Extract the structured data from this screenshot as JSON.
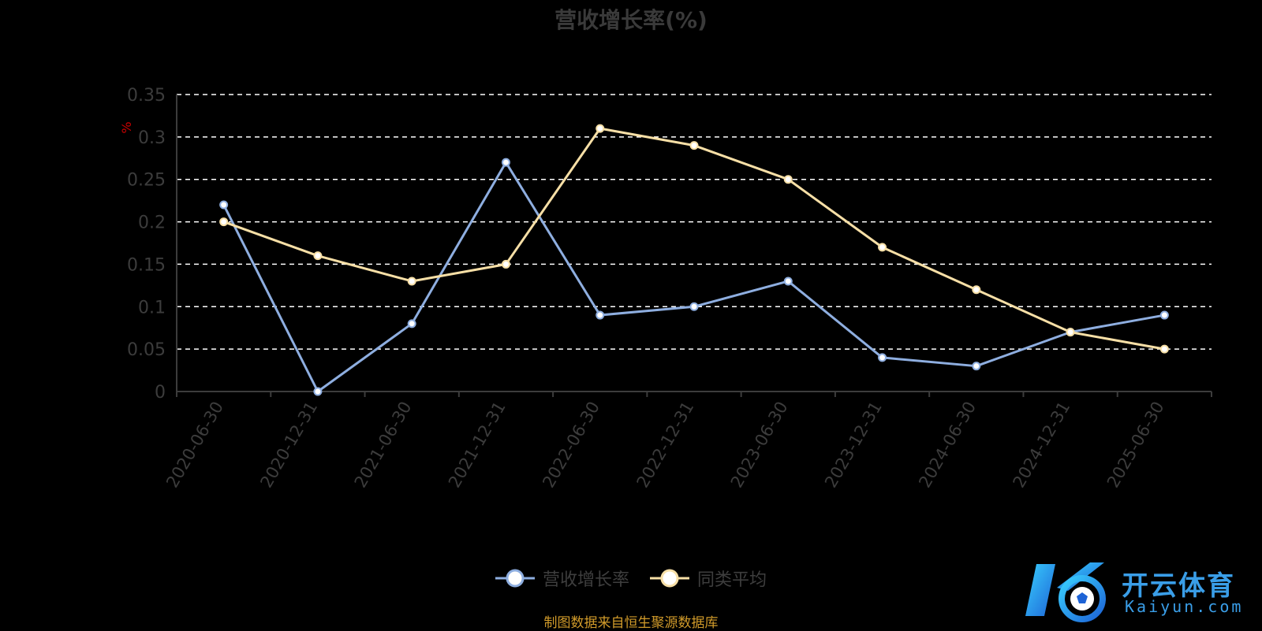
{
  "title": "营收增长率(%)",
  "source_note": "制图数据来自恒生聚源数据库",
  "watermark": {
    "brand": "开云体育",
    "domain": "Kaiyun.com"
  },
  "colors": {
    "background": "#000000",
    "series_1": "#8eaee0",
    "series_2": "#f7dfa6",
    "grid": "#ffffff",
    "axis_text": "#3c3c3c",
    "unit": "#cc0000",
    "source": "#d09a2a"
  },
  "chart_data": {
    "type": "line",
    "title": "营收增长率(%)",
    "ylabel": "%",
    "ylim": [
      0,
      0.35
    ],
    "yticks": [
      0,
      0.05,
      0.1,
      0.15,
      0.2,
      0.25,
      0.3,
      0.35
    ],
    "grid": true,
    "legend_position": "bottom",
    "categories": [
      "2020-06-30",
      "2020-12-31",
      "2021-06-30",
      "2021-12-31",
      "2022-06-30",
      "2022-12-31",
      "2023-06-30",
      "2023-12-31",
      "2024-06-30",
      "2024-12-31",
      "2025-06-30"
    ],
    "series": [
      {
        "name": "营收增长率",
        "color": "#8eaee0",
        "values": [
          0.22,
          0,
          0.08,
          0.27,
          0.09,
          0.1,
          0.13,
          0.04,
          0.03,
          0.07,
          0.09
        ]
      },
      {
        "name": "同类平均",
        "color": "#f7dfa6",
        "values": [
          0.2,
          0.16,
          0.13,
          0.15,
          0.31,
          0.29,
          0.25,
          0.17,
          0.12,
          0.07,
          0.05
        ]
      }
    ]
  }
}
